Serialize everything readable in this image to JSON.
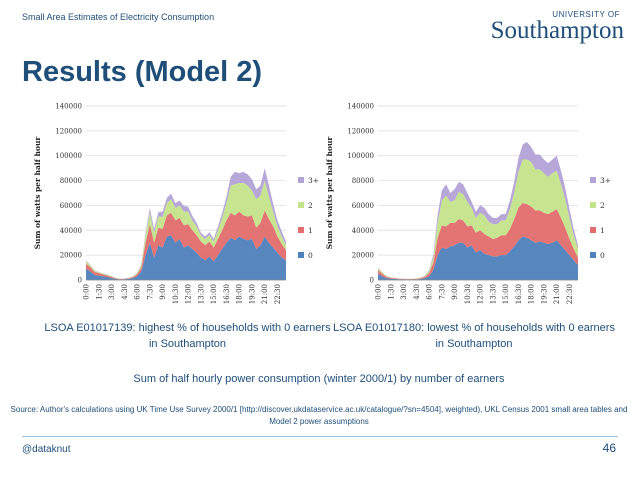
{
  "header": {
    "text": "Small Area Estimates of Electricity Consumption"
  },
  "logo": {
    "line1": "UNIVERSITY OF",
    "line2": "Southampton"
  },
  "title": "Results (Model 2)",
  "colors": {
    "brand": "#1f4e79",
    "s0": "#4f81bd",
    "s1": "#e36c6c",
    "s2": "#c4e38a",
    "s3": "#b3a2d6"
  },
  "chart_data": [
    {
      "type": "area",
      "stacked": true,
      "ylabel": "Sum of watts per half hour",
      "ylim": [
        0,
        140000
      ],
      "yticks": [
        0,
        20000,
        40000,
        60000,
        80000,
        100000,
        120000,
        140000
      ],
      "x": [
        "0:00",
        "0:30",
        "1:00",
        "1:30",
        "2:00",
        "2:30",
        "3:00",
        "3:30",
        "4:00",
        "4:30",
        "5:00",
        "5:30",
        "6:00",
        "6:30",
        "7:00",
        "7:30",
        "8:00",
        "8:30",
        "9:00",
        "9:30",
        "10:00",
        "10:30",
        "11:00",
        "11:30",
        "12:00",
        "12:30",
        "13:00",
        "13:30",
        "14:00",
        "14:30",
        "15:00",
        "15:30",
        "16:00",
        "16:30",
        "17:00",
        "17:30",
        "18:00",
        "18:30",
        "19:00",
        "19:30",
        "20:00",
        "20:30",
        "21:00",
        "21:30",
        "22:00",
        "22:30",
        "23:00",
        "23:30"
      ],
      "xticks": [
        "0:00",
        "1:30",
        "3:00",
        "4:30",
        "6:00",
        "7:30",
        "9:00",
        "10:30",
        "12:00",
        "13:30",
        "15:00",
        "16:30",
        "18:00",
        "19:30",
        "21:00",
        "22:30"
      ],
      "legend": {
        "position": "right",
        "entries": [
          "3+",
          "2",
          "1",
          "0"
        ]
      },
      "series": [
        {
          "name": "0",
          "values": [
            9000,
            7000,
            4000,
            3500,
            3000,
            2500,
            1500,
            800,
            500,
            600,
            900,
            1500,
            3000,
            7000,
            20000,
            30000,
            18000,
            28000,
            26000,
            35000,
            36000,
            30000,
            33000,
            26000,
            28000,
            25000,
            22000,
            18000,
            16000,
            19000,
            15000,
            20000,
            25000,
            30000,
            34000,
            32000,
            35000,
            33000,
            32000,
            33000,
            25000,
            28000,
            35000,
            30000,
            26000,
            22000,
            18000,
            16000
          ]
        },
        {
          "name": "1",
          "values": [
            4000,
            3500,
            2500,
            2000,
            1500,
            1200,
            1000,
            500,
            300,
            300,
            500,
            800,
            1500,
            3000,
            10000,
            15000,
            12000,
            14000,
            15000,
            17000,
            18000,
            18000,
            17000,
            18000,
            17000,
            15000,
            14000,
            13000,
            12000,
            12000,
            11000,
            13000,
            15000,
            18000,
            20000,
            20000,
            20000,
            19000,
            19000,
            19000,
            17000,
            18000,
            21000,
            19000,
            17000,
            13000,
            11000,
            8000
          ]
        },
        {
          "name": "2",
          "values": [
            2000,
            1500,
            1000,
            800,
            600,
            500,
            400,
            300,
            200,
            200,
            300,
            500,
            1000,
            2000,
            6000,
            9000,
            8000,
            9000,
            10000,
            10000,
            11000,
            10000,
            10000,
            11000,
            10000,
            8000,
            7000,
            5000,
            5000,
            5000,
            5000,
            7000,
            10000,
            14000,
            22000,
            25000,
            23000,
            26000,
            25000,
            20000,
            23000,
            22000,
            24000,
            18000,
            12000,
            8000,
            6000,
            4000
          ]
        },
        {
          "name": "3+",
          "values": [
            500,
            400,
            300,
            200,
            150,
            100,
            100,
            100,
            100,
            100,
            100,
            200,
            400,
            800,
            2000,
            4000,
            3000,
            3500,
            4000,
            4000,
            4500,
            4000,
            4000,
            4500,
            4000,
            3500,
            3000,
            2000,
            2000,
            2500,
            2000,
            3000,
            4000,
            5000,
            7000,
            10000,
            8000,
            9000,
            9000,
            9000,
            8000,
            8000,
            10000,
            9000,
            6000,
            5000,
            4000,
            3000
          ]
        }
      ],
      "caption": "LSOA E01017139: highest % of households with 0 earners in Southampton"
    },
    {
      "type": "area",
      "stacked": true,
      "ylabel": "Sum of watts per half hour",
      "ylim": [
        0,
        140000
      ],
      "yticks": [
        0,
        20000,
        40000,
        60000,
        80000,
        100000,
        120000,
        140000
      ],
      "x": [
        "0:00",
        "0:30",
        "1:00",
        "1:30",
        "2:00",
        "2:30",
        "3:00",
        "3:30",
        "4:00",
        "4:30",
        "5:00",
        "5:30",
        "6:00",
        "6:30",
        "7:00",
        "7:30",
        "8:00",
        "8:30",
        "9:00",
        "9:30",
        "10:00",
        "10:30",
        "11:00",
        "11:30",
        "12:00",
        "12:30",
        "13:00",
        "13:30",
        "14:00",
        "14:30",
        "15:00",
        "15:30",
        "16:00",
        "16:30",
        "17:00",
        "17:30",
        "18:00",
        "18:30",
        "19:00",
        "19:30",
        "20:00",
        "20:30",
        "21:00",
        "21:30",
        "22:00",
        "22:30",
        "23:00",
        "23:30"
      ],
      "xticks": [
        "0:00",
        "1:30",
        "3:00",
        "4:30",
        "6:00",
        "7:30",
        "9:00",
        "10:30",
        "12:00",
        "13:30",
        "15:00",
        "16:30",
        "18:00",
        "19:30",
        "21:00",
        "22:30"
      ],
      "legend": {
        "position": "right",
        "entries": [
          "3+",
          "2",
          "1",
          "0"
        ]
      },
      "series": [
        {
          "name": "0",
          "values": [
            5000,
            3000,
            1500,
            1000,
            800,
            600,
            500,
            400,
            400,
            500,
            800,
            1500,
            3000,
            8000,
            20000,
            26000,
            25000,
            27000,
            28000,
            30000,
            30000,
            26000,
            28000,
            22000,
            24000,
            21000,
            20000,
            19000,
            19000,
            20000,
            20000,
            23000,
            27000,
            32000,
            35000,
            34000,
            32000,
            30000,
            31000,
            30000,
            29000,
            30000,
            32000,
            28000,
            24000,
            20000,
            16000,
            12000
          ]
        },
        {
          "name": "1",
          "values": [
            3000,
            2000,
            1000,
            700,
            500,
            400,
            300,
            300,
            300,
            400,
            600,
            1000,
            2500,
            6000,
            14000,
            18000,
            18000,
            19000,
            18000,
            19000,
            18000,
            17000,
            16000,
            16000,
            16000,
            16000,
            15000,
            14000,
            15000,
            16000,
            16000,
            18000,
            22000,
            26000,
            27000,
            27000,
            27000,
            26000,
            25000,
            24000,
            24000,
            25000,
            25000,
            22000,
            18000,
            13000,
            9000,
            6000
          ]
        },
        {
          "name": "2",
          "values": [
            1500,
            1000,
            500,
            400,
            300,
            200,
            200,
            200,
            200,
            300,
            400,
            700,
            1500,
            4000,
            12000,
            20000,
            25000,
            17000,
            18000,
            22000,
            21000,
            20000,
            14000,
            12000,
            14000,
            15000,
            12000,
            12000,
            11000,
            12000,
            12000,
            16000,
            21000,
            29000,
            35000,
            36000,
            36000,
            33000,
            33000,
            32000,
            30000,
            31000,
            31000,
            27000,
            23000,
            17000,
            11000,
            7000
          ]
        },
        {
          "name": "3+",
          "values": [
            500,
            300,
            200,
            100,
            100,
            100,
            100,
            100,
            100,
            100,
            200,
            300,
            800,
            2500,
            6000,
            8000,
            9000,
            7000,
            9000,
            8000,
            8000,
            7000,
            5000,
            5000,
            6000,
            6000,
            6000,
            5000,
            5000,
            5000,
            5000,
            7000,
            9000,
            11000,
            12000,
            14000,
            12000,
            12000,
            12000,
            11000,
            11000,
            11000,
            12000,
            11000,
            9000,
            7000,
            5000,
            3000
          ]
        }
      ],
      "caption": "LSOA E01017180: lowest % of households with 0 earners in Southampton"
    }
  ],
  "subtitle": "Sum of half hourly power consumption (winter 2000/1) by number of earners",
  "source": "Source: Author's calculations using UK Time Use Survey 2000/1 [http://discover.ukdataservice.ac.uk/catalogue/?sn=4504], weighted), UKL Census 2001 small area tables and Model 2 power assumptions",
  "footer": {
    "handle": "@dataknut",
    "page": "46"
  }
}
